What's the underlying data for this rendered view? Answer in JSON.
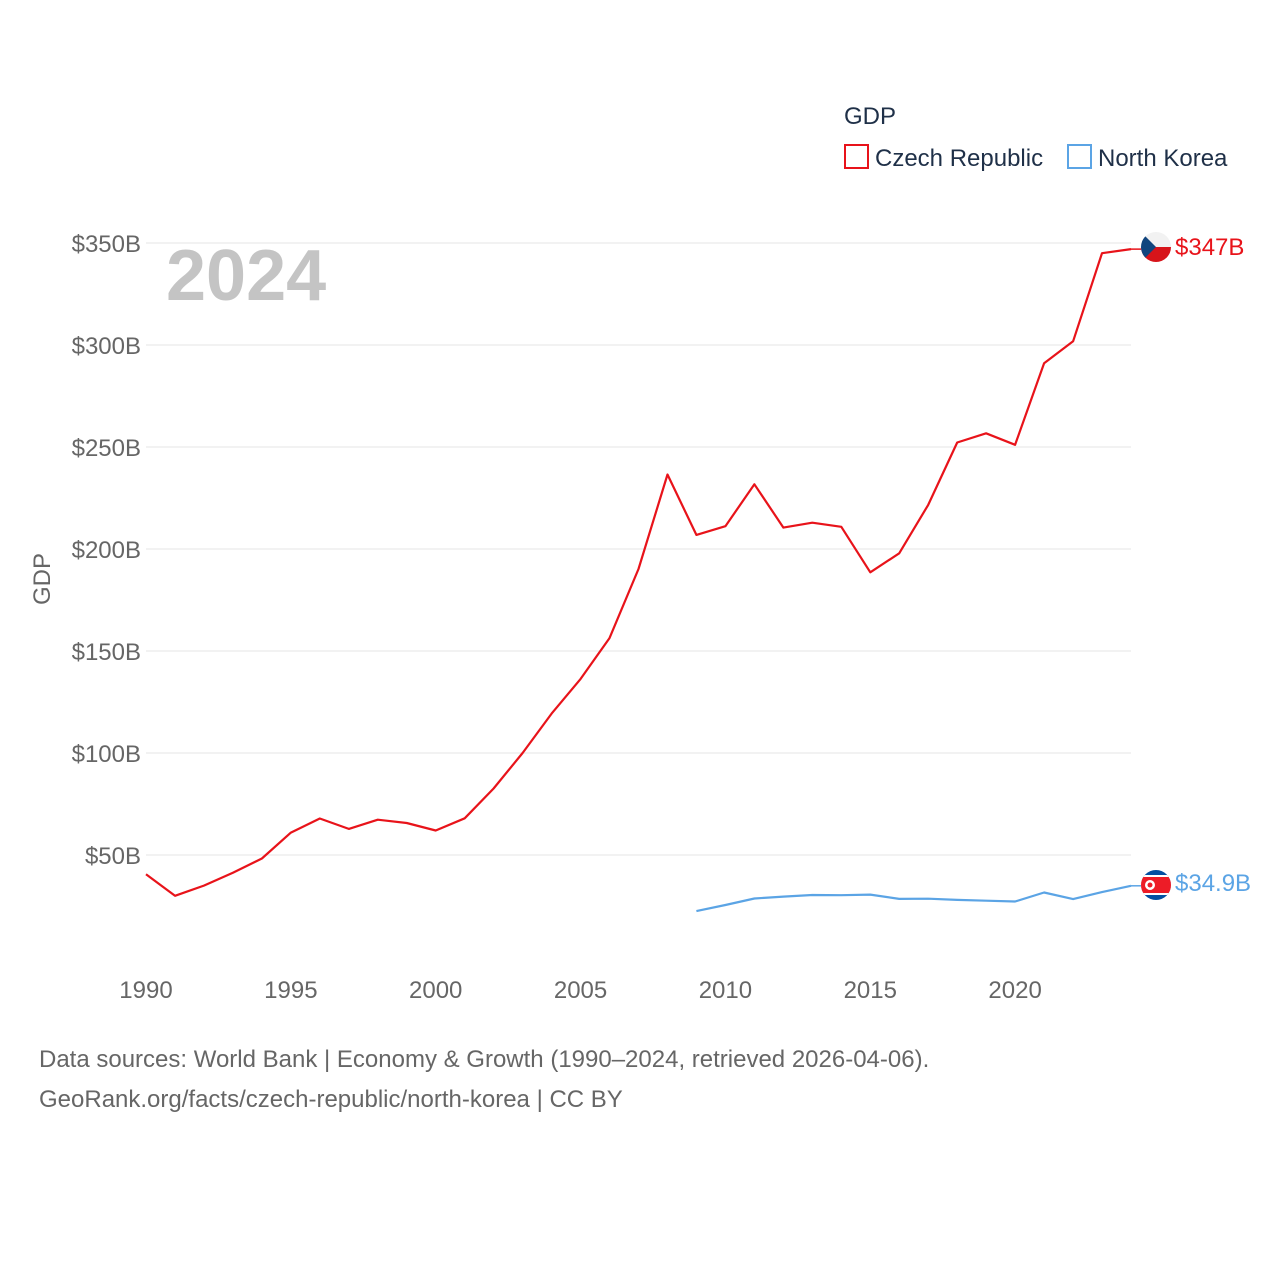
{
  "chart_data": {
    "type": "line",
    "title": "GDP",
    "ylabel": "GDP",
    "xlabel": "",
    "year_label": "2024",
    "xlim": [
      1990,
      2024
    ],
    "ylim": [
      0,
      350
    ],
    "y_ticks": [
      50,
      100,
      150,
      200,
      250,
      300,
      350
    ],
    "y_tick_labels": [
      "$50B",
      "$100B",
      "$150B",
      "$200B",
      "$250B",
      "$300B",
      "$350B"
    ],
    "x_ticks": [
      1990,
      1995,
      2000,
      2005,
      2010,
      2015,
      2020
    ],
    "x_tick_labels": [
      "1990",
      "1995",
      "2000",
      "2005",
      "2010",
      "2015",
      "2020"
    ],
    "legend_title": "GDP",
    "legend_position": "top-right",
    "grid": true,
    "series": [
      {
        "name": "Czech Republic",
        "color": "#e8131a",
        "end_label": "$347B",
        "flag": "czech-flag",
        "x": [
          1990,
          1991,
          1992,
          1993,
          1994,
          1995,
          1996,
          1997,
          1998,
          1999,
          2000,
          2001,
          2002,
          2003,
          2004,
          2005,
          2006,
          2007,
          2008,
          2009,
          2010,
          2011,
          2012,
          2013,
          2014,
          2015,
          2016,
          2017,
          2018,
          2019,
          2020,
          2021,
          2022,
          2023,
          2024
        ],
        "values": [
          40.6,
          30.0,
          35.0,
          41.3,
          48.3,
          61.0,
          67.9,
          62.8,
          67.3,
          65.7,
          62.0,
          68.0,
          82.6,
          100.0,
          119.3,
          136.3,
          156.3,
          190.2,
          236.5,
          206.9,
          211.2,
          231.7,
          210.5,
          212.9,
          210.9,
          188.6,
          197.9,
          221.6,
          252.2,
          256.7,
          251.1,
          291.1,
          301.8,
          345.0,
          347.0
        ]
      },
      {
        "name": "North Korea",
        "color": "#5ba4e5",
        "end_label": "$34.9B",
        "flag": "north-korea-flag",
        "x": [
          2009,
          2010,
          2011,
          2012,
          2013,
          2014,
          2015,
          2016,
          2017,
          2018,
          2019,
          2020,
          2021,
          2022,
          2023,
          2024
        ],
        "values": [
          22.5,
          25.5,
          28.7,
          29.6,
          30.4,
          30.3,
          30.6,
          28.5,
          28.6,
          28.0,
          27.6,
          27.2,
          31.6,
          28.4,
          31.8,
          34.9
        ]
      }
    ]
  },
  "footer": {
    "line1": "Data sources: World Bank | Economy & Growth (1990–2024, retrieved 2026-04-06).",
    "line2": "GeoRank.org/facts/czech-republic/north-korea | CC BY"
  }
}
